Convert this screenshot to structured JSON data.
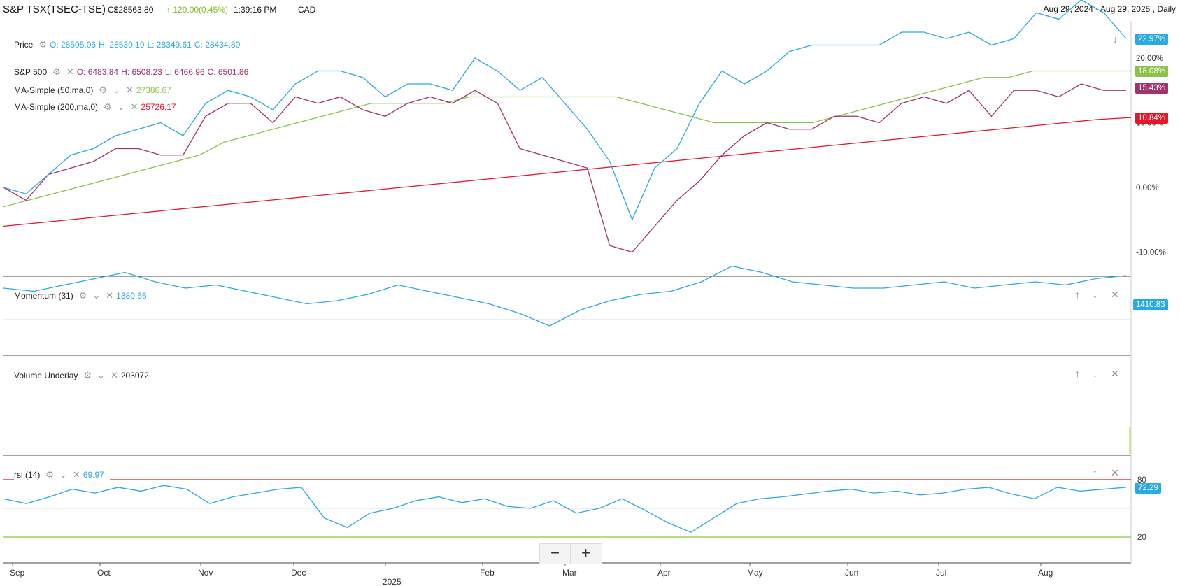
{
  "header": {
    "symbol": "S&P TSX(TSEC-TSE)",
    "price": "C$28563.80",
    "change": "129.00",
    "change_pct": "(0.45%)",
    "time": "1:39:16 PM",
    "currency": "CAD",
    "date_range": "Aug 29, 2024 - Aug 29, 2025 , Daily"
  },
  "colors": {
    "price": "#29abe2",
    "sp500": "#a3336b",
    "ma50": "#8bc34a",
    "ma200": "#e0192a",
    "rsi_upper": "#e0192a",
    "rsi_lower": "#8bc34a"
  },
  "legends": {
    "price": {
      "label": "Price",
      "o": "O: 28505.06",
      "h": "H: 28530.19",
      "l": "L: 28349.61",
      "c": "C: 28434.80"
    },
    "sp500": {
      "label": "S&P 500",
      "o": "O: 6483.84",
      "h": "H: 6508.23",
      "l": "L: 6466.96",
      "c": "C: 6501.86"
    },
    "ma50": {
      "label": "MA-Simple (50,ma,0)",
      "value": "27386.67"
    },
    "ma200": {
      "label": "MA-Simple (200,ma,0)",
      "value": "25726.17"
    },
    "momentum": {
      "label": "Momentum (31)",
      "value": "1380.66"
    },
    "volume": {
      "label": "Volume Underlay",
      "value": "203072"
    },
    "rsi": {
      "label": "rsi (14)",
      "value": "69.97"
    }
  },
  "tags": {
    "price": "22.97%",
    "ma50": "18.08%",
    "sp500": "15.43%",
    "ma200": "10.84%",
    "momentum": "1410.83",
    "rsi": "72.29"
  },
  "zoom": {
    "minus": "−",
    "plus": "+"
  },
  "chart_data": {
    "type": "line",
    "y_axis": {
      "ticks": [
        "20.00%",
        "10.00%",
        "0.00%",
        "-10.00%"
      ]
    },
    "rsi_axis": {
      "ticks": [
        "80",
        "20"
      ]
    },
    "x_axis": {
      "ticks": [
        "Sep",
        "Oct",
        "Nov",
        "Dec",
        "2025",
        "Feb",
        "Mar",
        "Apr",
        "May",
        "Jun",
        "Jul",
        "Aug"
      ]
    },
    "series": [
      {
        "name": "Price",
        "values": [
          0,
          -1,
          2,
          5,
          6,
          8,
          9,
          10,
          8,
          13,
          15,
          14,
          12,
          16,
          18,
          18,
          17,
          14,
          16,
          16,
          15,
          20,
          18,
          15,
          17,
          13,
          9,
          4,
          -5,
          3,
          6,
          13,
          18,
          16,
          18,
          21,
          22,
          22,
          22,
          22,
          24,
          24,
          23,
          24,
          22,
          23,
          27,
          26,
          29,
          27,
          23
        ]
      },
      {
        "name": "S&P 500",
        "values": [
          0,
          -2,
          2,
          3,
          4,
          6,
          6,
          5,
          5,
          11,
          13,
          13,
          10,
          14,
          13,
          14,
          12,
          11,
          13,
          14,
          13,
          15,
          13,
          6,
          5,
          4,
          3,
          -9,
          -10,
          -6,
          -2,
          1,
          5,
          8,
          10,
          9,
          9,
          11,
          11,
          10,
          13,
          14,
          13,
          15,
          11,
          15,
          15,
          14,
          16,
          15,
          15
        ]
      },
      {
        "name": "MA-Simple (50,ma,0)",
        "values": [
          -3,
          -2,
          -1,
          0,
          1,
          2,
          3,
          4,
          5,
          7,
          8,
          9,
          10,
          11,
          12,
          13,
          13,
          13,
          13,
          14,
          14,
          14,
          14,
          14,
          14,
          14,
          13,
          12,
          11,
          10,
          10,
          10,
          10,
          10,
          11,
          12,
          13,
          14,
          15,
          16,
          17,
          17,
          18,
          18,
          18,
          18,
          18
        ]
      },
      {
        "name": "MA-Simple (200,ma,0)",
        "values": [
          -6,
          -5.5,
          -5,
          -4.5,
          -4,
          -3.5,
          -3,
          -2.5,
          -2,
          -1.5,
          -1,
          -0.5,
          0,
          0.5,
          1,
          1.5,
          2,
          2.5,
          3,
          3.5,
          4,
          4.5,
          5,
          5.5,
          6,
          6.5,
          7,
          7.5,
          8,
          8.5,
          9,
          9.5,
          10,
          10.5,
          10.8
        ]
      },
      {
        "name": "Momentum (31)",
        "values": [
          1000,
          900,
          1100,
          1300,
          1500,
          1200,
          1000,
          1100,
          900,
          700,
          500,
          600,
          800,
          1100,
          900,
          700,
          500,
          200,
          -200,
          300,
          600,
          800,
          900,
          1200,
          1700,
          1500,
          1200,
          1100,
          1000,
          1000,
          1100,
          1200,
          1000,
          1100,
          1200,
          1100,
          1300,
          1400
        ]
      },
      {
        "name": "rsi (14)",
        "values": [
          60,
          55,
          62,
          70,
          66,
          72,
          68,
          74,
          70,
          55,
          62,
          66,
          70,
          72,
          40,
          30,
          45,
          50,
          58,
          62,
          56,
          60,
          52,
          50,
          58,
          45,
          50,
          60,
          48,
          35,
          25,
          40,
          55,
          60,
          62,
          65,
          68,
          70,
          66,
          68,
          64,
          66,
          70,
          72,
          65,
          60,
          72,
          68,
          70,
          72
        ]
      }
    ]
  }
}
